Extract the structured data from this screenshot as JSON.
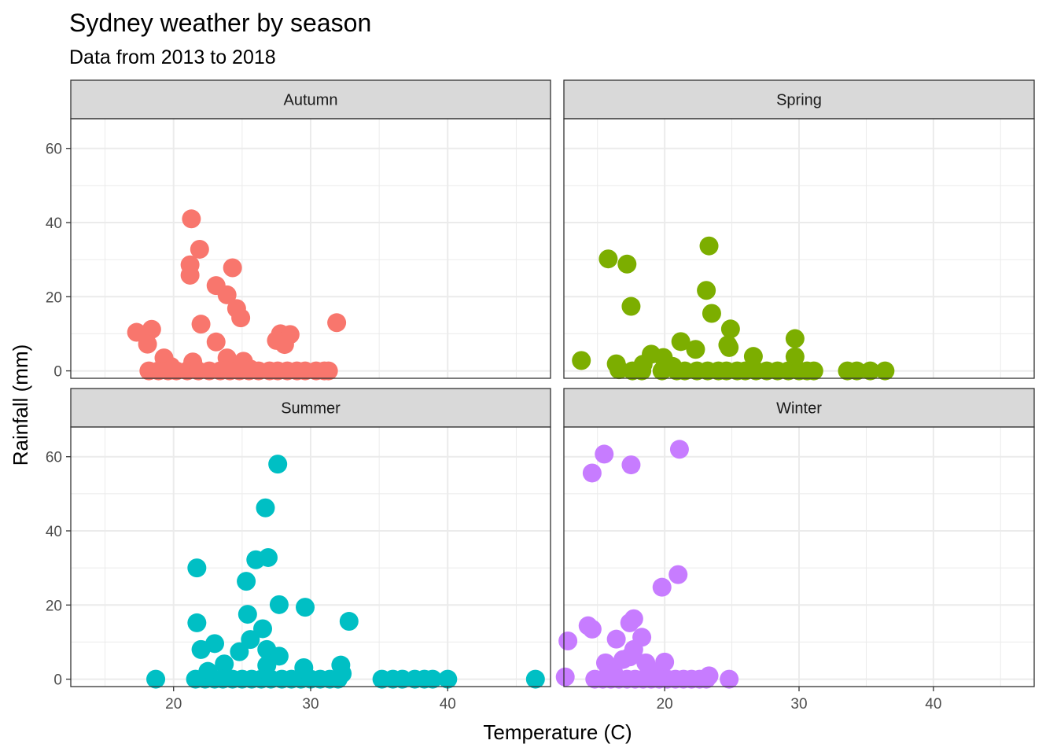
{
  "chart_data": {
    "type": "scatter",
    "title": "Sydney weather by season",
    "subtitle": "Data from 2013 to 2018",
    "xlabel": "Temperature (C)",
    "ylabel": "Rainfall (mm)",
    "xlim": [
      12.5,
      47.5
    ],
    "ylim": [
      -2,
      68
    ],
    "x_ticks": [
      20,
      30,
      40
    ],
    "y_ticks": [
      0,
      20,
      40,
      60
    ],
    "grid": true,
    "legend": "none",
    "colors": {
      "Autumn": "#F8766D",
      "Spring": "#7CAE00",
      "Summer": "#00BFC4",
      "Winter": "#C77CFF"
    },
    "panels": [
      {
        "name": "Autumn",
        "points": [
          [
            21.3,
            41
          ],
          [
            21.9,
            32.8
          ],
          [
            21.2,
            28.6
          ],
          [
            21.2,
            25.8
          ],
          [
            24.3,
            27.8
          ],
          [
            23.1,
            23
          ],
          [
            23.9,
            20.5
          ],
          [
            24.6,
            16.8
          ],
          [
            24.9,
            14.3
          ],
          [
            22.0,
            12.6
          ],
          [
            31.9,
            13
          ],
          [
            17.3,
            10.4
          ],
          [
            18.4,
            11.2
          ],
          [
            18.1,
            7.2
          ],
          [
            23.1,
            7.8
          ],
          [
            27.8,
            10
          ],
          [
            28.5,
            9.8
          ],
          [
            27.5,
            8.2
          ],
          [
            28.1,
            7.1
          ],
          [
            19.3,
            3.5
          ],
          [
            19.8,
            1.2
          ],
          [
            21.4,
            2.4
          ],
          [
            23.9,
            3.5
          ],
          [
            24.3,
            1.8
          ],
          [
            25.1,
            2.6
          ],
          [
            25.6,
            0.5
          ],
          [
            18.2,
            0
          ],
          [
            18.9,
            0
          ],
          [
            19.6,
            0
          ],
          [
            20.2,
            0
          ],
          [
            21.0,
            0
          ],
          [
            21.8,
            0
          ],
          [
            22.6,
            0
          ],
          [
            23.4,
            0
          ],
          [
            24.1,
            0
          ],
          [
            24.8,
            0
          ],
          [
            25.5,
            0
          ],
          [
            26.2,
            0
          ],
          [
            27.0,
            0
          ],
          [
            27.6,
            0
          ],
          [
            28.3,
            0
          ],
          [
            29.0,
            0
          ],
          [
            29.6,
            0
          ],
          [
            30.4,
            0
          ],
          [
            31.0,
            0
          ],
          [
            31.3,
            0
          ]
        ]
      },
      {
        "name": "Spring",
        "points": [
          [
            23.3,
            33.7
          ],
          [
            15.8,
            30.2
          ],
          [
            17.2,
            28.8
          ],
          [
            23.1,
            21.7
          ],
          [
            17.5,
            17.4
          ],
          [
            23.5,
            15.5
          ],
          [
            24.9,
            11.3
          ],
          [
            21.2,
            7.9
          ],
          [
            22.3,
            5.8
          ],
          [
            24.8,
            6.3
          ],
          [
            24.7,
            7
          ],
          [
            29.7,
            8.7
          ],
          [
            29.7,
            3.8
          ],
          [
            26.6,
            3.9
          ],
          [
            13.8,
            2.8
          ],
          [
            16.4,
            1.9
          ],
          [
            19.0,
            4.5
          ],
          [
            19.9,
            3.6
          ],
          [
            18.4,
            1.8
          ],
          [
            20.6,
            1.2
          ],
          [
            16.6,
            0.3
          ],
          [
            17.6,
            0
          ],
          [
            18.3,
            0
          ],
          [
            19.8,
            0
          ],
          [
            20.9,
            0
          ],
          [
            21.5,
            0
          ],
          [
            22.4,
            0
          ],
          [
            23.2,
            0
          ],
          [
            24.0,
            0
          ],
          [
            24.6,
            0
          ],
          [
            25.4,
            0
          ],
          [
            26.0,
            0
          ],
          [
            26.8,
            0
          ],
          [
            27.6,
            0
          ],
          [
            28.4,
            0
          ],
          [
            29.2,
            0
          ],
          [
            30.0,
            0
          ],
          [
            30.6,
            0
          ],
          [
            31.1,
            0
          ],
          [
            33.6,
            0
          ],
          [
            34.3,
            0
          ],
          [
            35.3,
            0
          ],
          [
            36.4,
            0
          ]
        ]
      },
      {
        "name": "Summer",
        "points": [
          [
            27.6,
            58
          ],
          [
            26.7,
            46.2
          ],
          [
            26.9,
            32.8
          ],
          [
            26.0,
            32.2
          ],
          [
            21.7,
            30
          ],
          [
            25.3,
            26.4
          ],
          [
            27.7,
            20.1
          ],
          [
            29.6,
            19.4
          ],
          [
            21.7,
            15.2
          ],
          [
            25.4,
            17.5
          ],
          [
            32.8,
            15.6
          ],
          [
            26.5,
            13.6
          ],
          [
            25.6,
            10.7
          ],
          [
            23.0,
            9.6
          ],
          [
            22.0,
            8
          ],
          [
            24.8,
            7.4
          ],
          [
            26.8,
            8
          ],
          [
            27.7,
            6.2
          ],
          [
            23.7,
            4.1
          ],
          [
            29.5,
            3.1
          ],
          [
            32.2,
            3.8
          ],
          [
            26.8,
            3.7
          ],
          [
            22.5,
            2.1
          ],
          [
            32.3,
            1.5
          ],
          [
            18.7,
            0
          ],
          [
            21.6,
            0
          ],
          [
            22.3,
            0
          ],
          [
            23.0,
            0
          ],
          [
            23.6,
            0
          ],
          [
            24.3,
            0
          ],
          [
            25.0,
            0
          ],
          [
            25.7,
            0
          ],
          [
            26.4,
            0
          ],
          [
            27.1,
            0
          ],
          [
            27.9,
            0
          ],
          [
            28.6,
            0
          ],
          [
            29.3,
            0
          ],
          [
            30.0,
            0
          ],
          [
            30.7,
            0
          ],
          [
            31.4,
            0
          ],
          [
            32.0,
            0
          ],
          [
            35.2,
            0
          ],
          [
            36.0,
            0
          ],
          [
            36.7,
            0
          ],
          [
            37.6,
            0
          ],
          [
            38.3,
            0
          ],
          [
            38.9,
            0
          ],
          [
            40.0,
            0
          ],
          [
            46.4,
            0
          ]
        ]
      },
      {
        "name": "Winter",
        "points": [
          [
            21.1,
            62
          ],
          [
            15.5,
            60.7
          ],
          [
            17.5,
            57.8
          ],
          [
            14.6,
            55.6
          ],
          [
            21.0,
            28.2
          ],
          [
            19.8,
            24.8
          ],
          [
            17.7,
            16.3
          ],
          [
            14.3,
            14.4
          ],
          [
            17.4,
            15.2
          ],
          [
            14.6,
            13.5
          ],
          [
            12.8,
            10.3
          ],
          [
            16.4,
            10.8
          ],
          [
            18.3,
            11.3
          ],
          [
            17.7,
            8
          ],
          [
            17.4,
            6
          ],
          [
            15.6,
            4.4
          ],
          [
            16.9,
            5.3
          ],
          [
            18.6,
            4.4
          ],
          [
            20.0,
            4.6
          ],
          [
            12.6,
            0.6
          ],
          [
            16.2,
            1.8
          ],
          [
            19.2,
            2
          ],
          [
            14.8,
            0
          ],
          [
            15.4,
            0
          ],
          [
            16.0,
            0
          ],
          [
            16.6,
            0
          ],
          [
            17.2,
            0
          ],
          [
            17.8,
            0
          ],
          [
            18.4,
            0
          ],
          [
            19.0,
            0
          ],
          [
            19.6,
            0
          ],
          [
            20.2,
            0
          ],
          [
            20.8,
            0
          ],
          [
            21.4,
            0
          ],
          [
            22.0,
            0
          ],
          [
            22.6,
            0
          ],
          [
            23.1,
            0
          ],
          [
            23.3,
            0.9
          ],
          [
            24.8,
            0
          ]
        ]
      }
    ]
  }
}
